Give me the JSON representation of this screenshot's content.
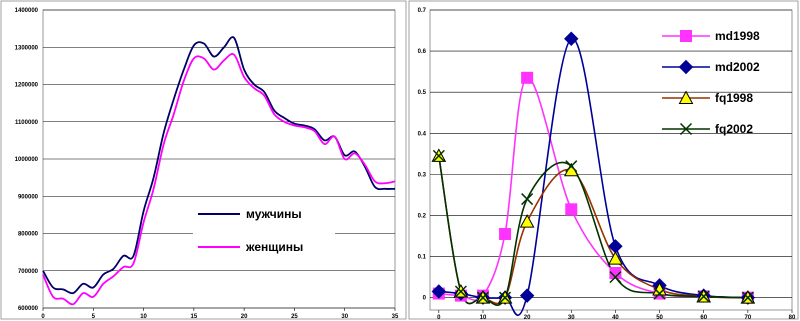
{
  "chart_data": [
    {
      "type": "line",
      "title": "",
      "xlabel": "",
      "ylabel": "",
      "xlim": [
        0,
        35
      ],
      "ylim": [
        600000,
        1400000
      ],
      "x_ticks": [
        0,
        5,
        10,
        15,
        20,
        25,
        30,
        35
      ],
      "y_ticks": [
        600000,
        700000,
        800000,
        900000,
        1000000,
        1100000,
        1200000,
        1300000,
        1400000
      ],
      "grid": "horizontal",
      "legend_position": "bottom-right",
      "series": [
        {
          "name": "мужчины",
          "color": "#000066",
          "x": [
            0,
            1,
            2,
            3,
            4,
            5,
            6,
            7,
            8,
            9,
            10,
            11,
            12,
            13,
            14,
            15,
            16,
            17,
            18,
            19,
            20,
            21,
            22,
            23,
            24,
            25,
            26,
            27,
            28,
            29,
            30,
            31,
            32,
            33,
            34,
            35
          ],
          "values": [
            700000,
            655000,
            650000,
            640000,
            665000,
            655000,
            690000,
            705000,
            740000,
            740000,
            860000,
            950000,
            1070000,
            1160000,
            1240000,
            1305000,
            1310000,
            1275000,
            1300000,
            1325000,
            1240000,
            1200000,
            1180000,
            1130000,
            1110000,
            1095000,
            1090000,
            1080000,
            1050000,
            1060000,
            1010000,
            1020000,
            980000,
            925000,
            920000,
            920000
          ]
        },
        {
          "name": "женщины",
          "color": "#ff00ff",
          "x": [
            0,
            1,
            2,
            3,
            4,
            5,
            6,
            7,
            8,
            9,
            10,
            11,
            12,
            13,
            14,
            15,
            16,
            17,
            18,
            19,
            20,
            21,
            22,
            23,
            24,
            25,
            26,
            27,
            28,
            29,
            30,
            31,
            32,
            33,
            34,
            35
          ],
          "values": [
            690000,
            630000,
            625000,
            610000,
            640000,
            630000,
            665000,
            685000,
            710000,
            720000,
            830000,
            920000,
            1040000,
            1120000,
            1210000,
            1270000,
            1270000,
            1240000,
            1265000,
            1280000,
            1220000,
            1190000,
            1170000,
            1120000,
            1100000,
            1090000,
            1085000,
            1075000,
            1040000,
            1060000,
            1000000,
            1015000,
            985000,
            940000,
            935000,
            940000
          ]
        }
      ]
    },
    {
      "type": "line",
      "title": "",
      "xlabel": "",
      "ylabel": "",
      "xlim": [
        -2,
        80
      ],
      "ylim": [
        -0.03,
        0.7
      ],
      "x_ticks": [
        0,
        10,
        20,
        30,
        40,
        50,
        60,
        70,
        80
      ],
      "y_ticks": [
        0,
        0.1,
        0.2,
        0.3,
        0.4,
        0.5,
        0.6,
        0.7
      ],
      "grid": "horizontal",
      "legend_position": "top-right",
      "series": [
        {
          "name": "md1998",
          "color": "#ff33ff",
          "marker": "square",
          "x": [
            0,
            5,
            10,
            15,
            20,
            30,
            40,
            50,
            60,
            70
          ],
          "values": [
            0.01,
            0.005,
            0.005,
            0.155,
            0.535,
            0.215,
            0.06,
            0.01,
            0.003,
            0.0
          ]
        },
        {
          "name": "md2002",
          "color": "#000099",
          "marker": "diamond",
          "x": [
            0,
            5,
            10,
            15,
            20,
            30,
            40,
            50,
            60,
            70
          ],
          "values": [
            0.015,
            0.01,
            0.0,
            0.0,
            0.005,
            0.63,
            0.125,
            0.03,
            0.005,
            0.0
          ]
        },
        {
          "name": "fq1998",
          "color": "#993300",
          "marker": "triangle",
          "x": [
            0,
            5,
            10,
            15,
            20,
            30,
            40,
            50,
            60,
            70
          ],
          "values": [
            0.345,
            0.015,
            0.0,
            0.0,
            0.185,
            0.31,
            0.095,
            0.02,
            0.003,
            0.0
          ]
        },
        {
          "name": "fq2002",
          "color": "#003300",
          "marker": "x",
          "x": [
            0,
            5,
            10,
            15,
            20,
            30,
            40,
            50,
            60,
            70
          ],
          "values": [
            0.345,
            0.015,
            0.0,
            0.0,
            0.24,
            0.32,
            0.05,
            0.01,
            0.003,
            0.0
          ]
        }
      ]
    }
  ]
}
